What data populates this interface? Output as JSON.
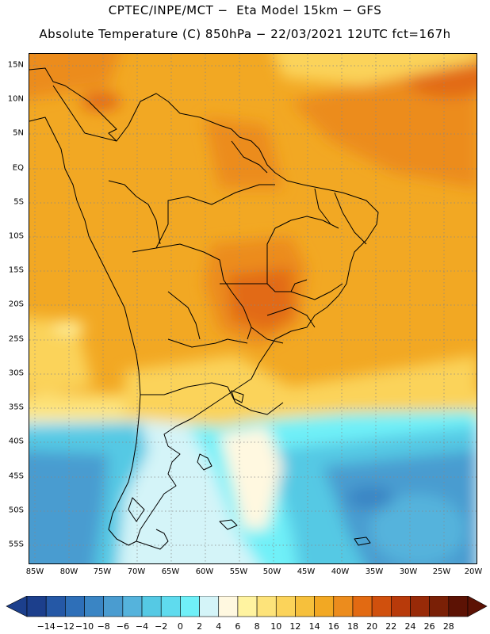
{
  "title_line1": "CPTEC/INPE/MCT −  Eta Model 15km − GFS",
  "title_line2": "Absolute Temperature (C) 850hPa − 22/03/2021 12UTC fct=167h",
  "lat_labels": [
    "15N",
    "10N",
    "5N",
    "EQ",
    "5S",
    "10S",
    "15S",
    "20S",
    "25S",
    "30S",
    "35S",
    "40S",
    "45S",
    "50S",
    "55S"
  ],
  "lon_labels": [
    "85W",
    "80W",
    "75W",
    "70W",
    "65W",
    "60W",
    "55W",
    "50W",
    "45W",
    "40W",
    "35W",
    "30W",
    "25W",
    "20W"
  ],
  "colorbar": {
    "labels": [
      "−14",
      "−12",
      "−10",
      "−8",
      "−6",
      "−4",
      "−2",
      "0",
      "2",
      "4",
      "6",
      "8",
      "10",
      "12",
      "14",
      "16",
      "18",
      "20",
      "22",
      "24",
      "26",
      "28"
    ],
    "colors": [
      "#1c3f8c",
      "#2558a6",
      "#2e6fb8",
      "#3a85c4",
      "#4a9cd0",
      "#55b3dc",
      "#55c9e4",
      "#5fdbee",
      "#70f0f8",
      "#d4f4f8",
      "#fff8e0",
      "#fff3a0",
      "#fde37a",
      "#fbd35a",
      "#f6c03c",
      "#f2a823",
      "#ec8c1d",
      "#e26a12",
      "#d0500d",
      "#b83a0a",
      "#982a08",
      "#7a2006",
      "#5c1204"
    ]
  }
}
